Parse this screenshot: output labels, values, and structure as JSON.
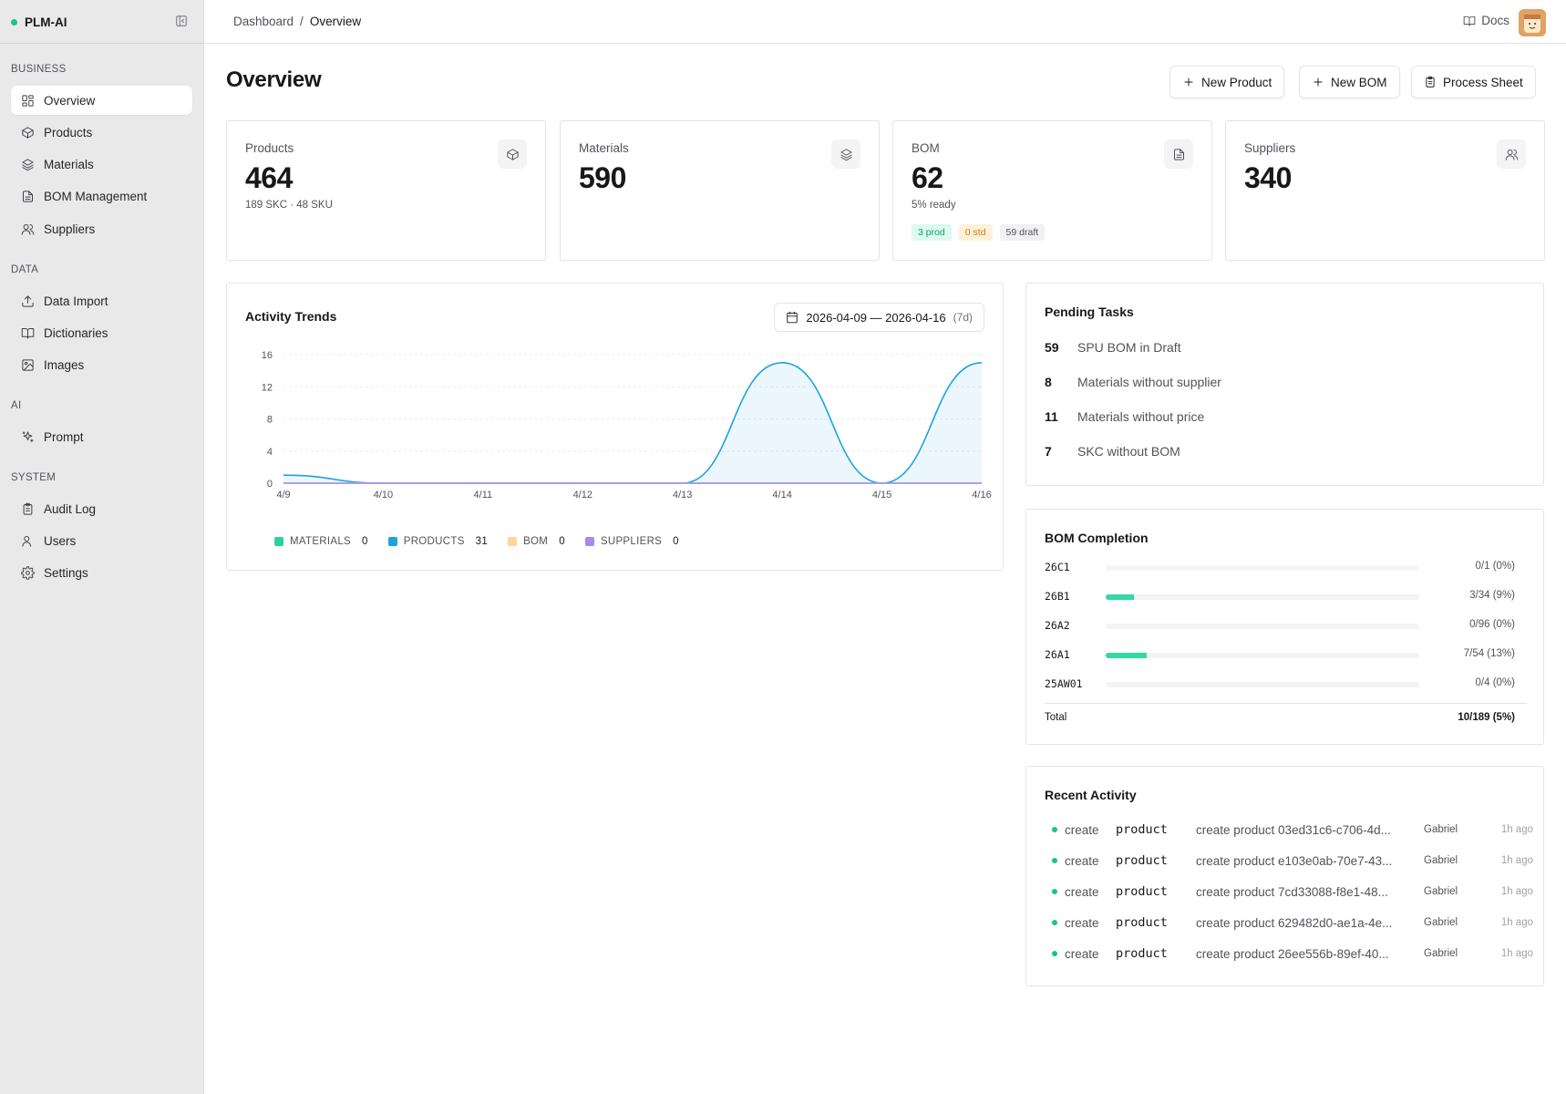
{
  "app": {
    "name": "PLM-AI"
  },
  "sidebar": {
    "groups": {
      "business": "BUSINESS",
      "data": "DATA",
      "ai": "AI",
      "system": "SYSTEM"
    },
    "items": [
      {
        "label": "Overview",
        "icon": "layout-grid-icon",
        "active": true
      },
      {
        "label": "Products",
        "icon": "package-icon"
      },
      {
        "label": "Materials",
        "icon": "layers-icon"
      },
      {
        "label": "BOM Management",
        "icon": "file-text-icon"
      },
      {
        "label": "Suppliers",
        "icon": "users-icon"
      },
      {
        "label": "Data Import",
        "icon": "upload-icon"
      },
      {
        "label": "Dictionaries",
        "icon": "book-open-icon"
      },
      {
        "label": "Images",
        "icon": "image-icon"
      },
      {
        "label": "Prompt",
        "icon": "sparkles-icon"
      },
      {
        "label": "Audit Log",
        "icon": "clipboard-icon"
      },
      {
        "label": "Users",
        "icon": "user-icon"
      },
      {
        "label": "Settings",
        "icon": "gear-icon"
      }
    ]
  },
  "header": {
    "breadcrumb": [
      "Dashboard",
      "/",
      "Overview"
    ],
    "docs": "Docs"
  },
  "page": {
    "title": "Overview",
    "actions": {
      "new_product": "New Product",
      "new_bom": "New BOM",
      "process_sheet": "Process Sheet"
    }
  },
  "stats": {
    "products": {
      "label": "Products",
      "value": "464",
      "sub": "189 SKC · 48 SKU"
    },
    "materials": {
      "label": "Materials",
      "value": "590"
    },
    "bom": {
      "label": "BOM",
      "value": "62",
      "sub": "5% ready",
      "chips": [
        "3 prod",
        "0 std",
        "59 draft"
      ]
    },
    "suppliers": {
      "label": "Suppliers",
      "value": "340"
    }
  },
  "trends": {
    "title": "Activity Trends",
    "range": "2026-04-09 — 2026-04-16",
    "range_days": "(7d)",
    "legend": [
      {
        "name": "MATERIALS",
        "count": "0",
        "color": "#2ad39a"
      },
      {
        "name": "PRODUCTS",
        "count": "31",
        "color": "#1ea3e0"
      },
      {
        "name": "BOM",
        "count": "0",
        "color": "#fcd59a"
      },
      {
        "name": "SUPPLIERS",
        "count": "0",
        "color": "#a68af2"
      }
    ]
  },
  "chart_data": {
    "type": "area",
    "title": "Activity Trends",
    "x": [
      "4/9",
      "4/10",
      "4/11",
      "4/12",
      "4/13",
      "4/14",
      "4/15",
      "4/16"
    ],
    "y_ticks": [
      0,
      4,
      8,
      12,
      16
    ],
    "ylim": [
      0,
      16
    ],
    "grid": true,
    "legend_position": "bottom",
    "series": [
      {
        "name": "MATERIALS",
        "values": [
          0,
          0,
          0,
          0,
          0,
          0,
          0,
          0
        ],
        "color": "#2ad39a"
      },
      {
        "name": "PRODUCTS",
        "values": [
          1,
          0,
          0,
          0,
          0,
          15,
          0,
          15
        ],
        "color": "#1ea3e0"
      },
      {
        "name": "BOM",
        "values": [
          0,
          0,
          0,
          0,
          0,
          0,
          0,
          0
        ],
        "color": "#fcd59a"
      },
      {
        "name": "SUPPLIERS",
        "values": [
          0,
          0,
          0,
          0,
          0,
          0,
          0,
          0
        ],
        "color": "#a68af2"
      }
    ]
  },
  "pending": {
    "title": "Pending Tasks",
    "tasks": [
      {
        "count": "59",
        "label": "SPU BOM in Draft"
      },
      {
        "count": "8",
        "label": "Materials without supplier"
      },
      {
        "count": "11",
        "label": "Materials without price"
      },
      {
        "count": "7",
        "label": "SKC without BOM"
      }
    ]
  },
  "bom_completion": {
    "title": "BOM Completion",
    "rows": [
      {
        "code": "26C1",
        "text": "0/1 (0%)",
        "pct": 0
      },
      {
        "code": "26B1",
        "text": "3/34 (9%)",
        "pct": 9
      },
      {
        "code": "26A2",
        "text": "0/96 (0%)",
        "pct": 0
      },
      {
        "code": "26A1",
        "text": "7/54 (13%)",
        "pct": 13
      },
      {
        "code": "25AW01",
        "text": "0/4 (0%)",
        "pct": 0
      }
    ],
    "total_label": "Total",
    "total_value": "10/189 (5%)"
  },
  "recent": {
    "title": "Recent Activity",
    "items": [
      {
        "action": "create",
        "entity": "product",
        "desc": "create product 03ed31c6-c706-4d...",
        "user": "Gabriel",
        "time": "1h ago"
      },
      {
        "action": "create",
        "entity": "product",
        "desc": "create product e103e0ab-70e7-43...",
        "user": "Gabriel",
        "time": "1h ago"
      },
      {
        "action": "create",
        "entity": "product",
        "desc": "create product 7cd33088-f8e1-48...",
        "user": "Gabriel",
        "time": "1h ago"
      },
      {
        "action": "create",
        "entity": "product",
        "desc": "create product 629482d0-ae1a-4e...",
        "user": "Gabriel",
        "time": "1h ago"
      },
      {
        "action": "create",
        "entity": "product",
        "desc": "create product 26ee556b-89ef-40...",
        "user": "Gabriel",
        "time": "1h ago"
      }
    ]
  },
  "colors": {
    "accent": "#16c784",
    "bar_fill": "#34d8a4",
    "line": "#1ea3e0"
  }
}
